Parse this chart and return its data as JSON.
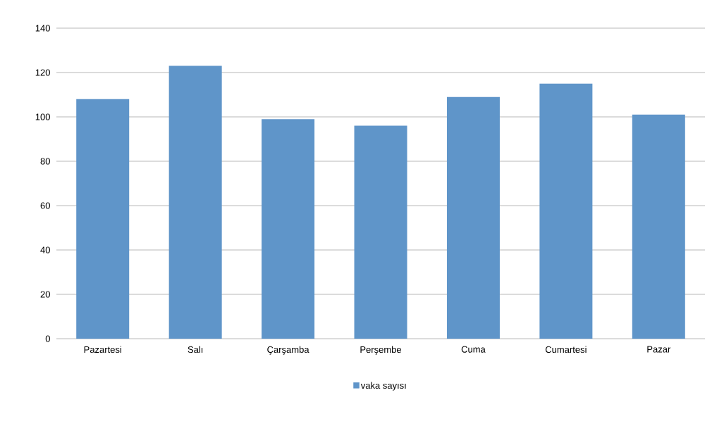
{
  "chart_data": {
    "type": "bar",
    "categories": [
      "Pazartesi",
      "Salı",
      "Çarşamba",
      "Perşembe",
      "Cuma",
      "Cumartesi",
      "Pazar"
    ],
    "series": [
      {
        "name": "vaka sayısı",
        "color": "#5f95c9",
        "values": [
          108,
          123,
          99,
          96,
          109,
          115,
          101
        ]
      }
    ],
    "ylim": [
      0,
      140
    ],
    "yticks": [
      0,
      20,
      40,
      60,
      80,
      100,
      120,
      140
    ],
    "grid": "y",
    "legend": "bottom"
  }
}
